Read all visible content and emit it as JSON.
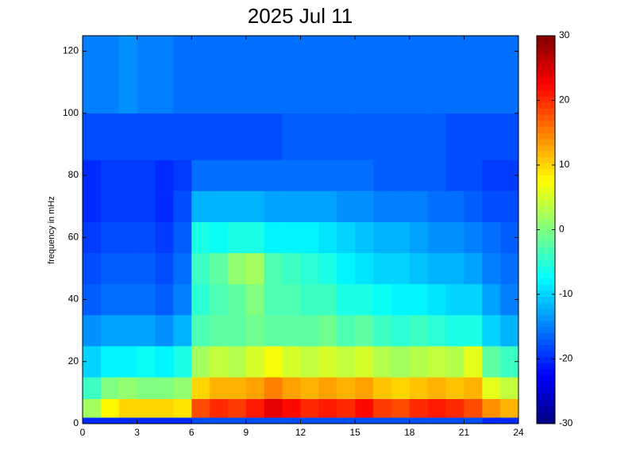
{
  "chart_data": {
    "type": "heatmap",
    "title": "2025 Jul 11",
    "y_label": "frequency in mHz",
    "x_edges": [
      0,
      1,
      2,
      3,
      4,
      5,
      6,
      7,
      8,
      9,
      10,
      11,
      12,
      13,
      14,
      15,
      16,
      17,
      18,
      19,
      20,
      21,
      22,
      23,
      24
    ],
    "y_edges": [
      0,
      2,
      8,
      15,
      25,
      35,
      45,
      55,
      65,
      75,
      85,
      100,
      125
    ],
    "values": [
      [
        -20,
        -20,
        -20,
        -20,
        -20,
        -20,
        -18,
        -18,
        -18,
        -18,
        -18,
        -18,
        -18,
        -18,
        -18,
        -18,
        -18,
        -18,
        -18,
        -18,
        -18,
        -18,
        -20,
        -20
      ],
      [
        2,
        8,
        10,
        10,
        10,
        9,
        18,
        20,
        19,
        21,
        24,
        22,
        20,
        21,
        20,
        22,
        19,
        18,
        20,
        21,
        20,
        18,
        14,
        12
      ],
      [
        -4,
        0,
        1,
        0,
        0,
        1,
        10,
        12,
        12,
        13,
        15,
        13,
        12,
        13,
        12,
        13,
        11,
        10,
        11,
        12,
        11,
        12,
        6,
        4
      ],
      [
        -10,
        -8,
        -8,
        -7,
        -8,
        -6,
        2,
        4,
        3,
        5,
        7,
        5,
        4,
        5,
        4,
        5,
        3,
        2,
        3,
        4,
        3,
        6,
        -2,
        -4
      ],
      [
        -14,
        -13,
        -13,
        -13,
        -14,
        -12,
        -3,
        -2,
        -2,
        -1,
        -2,
        -2,
        -2,
        -1,
        -3,
        -2,
        -4,
        -5,
        -4,
        -5,
        -6,
        -6,
        -10,
        -12
      ],
      [
        -17,
        -16,
        -16,
        -16,
        -17,
        -15,
        -5,
        -3,
        -2,
        0,
        -3,
        -3,
        -4,
        -4,
        -6,
        -6,
        -7,
        -8,
        -8,
        -9,
        -10,
        -10,
        -13,
        -15
      ],
      [
        -18,
        -17,
        -17,
        -17,
        -18,
        -16,
        -4,
        -2,
        1,
        2,
        -3,
        -4,
        -5,
        -6,
        -8,
        -9,
        -10,
        -10,
        -11,
        -12,
        -12,
        -13,
        -15,
        -16
      ],
      [
        -19,
        -18,
        -18,
        -18,
        -19,
        -17,
        -6,
        -7,
        -6,
        -6,
        -8,
        -8,
        -8,
        -9,
        -10,
        -11,
        -12,
        -12,
        -13,
        -14,
        -14,
        -15,
        -16,
        -17
      ],
      [
        -20,
        -19,
        -19,
        -19,
        -20,
        -18,
        -12,
        -12,
        -12,
        -12,
        -13,
        -13,
        -13,
        -13,
        -14,
        -14,
        -15,
        -15,
        -15,
        -16,
        -16,
        -17,
        -18,
        -18
      ],
      [
        -20,
        -19,
        -19,
        -19,
        -20,
        -19,
        -16,
        -16,
        -16,
        -16,
        -16,
        -16,
        -16,
        -16,
        -16,
        -16,
        -17,
        -17,
        -17,
        -17,
        -18,
        -18,
        -19,
        -19
      ],
      [
        -18,
        -18,
        -18,
        -18,
        -18,
        -18,
        -18,
        -18,
        -18,
        -18,
        -18,
        -17,
        -17,
        -17,
        -17,
        -17,
        -17,
        -17,
        -17,
        -17,
        -18,
        -18,
        -18,
        -18
      ],
      [
        -15,
        -15,
        -14,
        -15,
        -15,
        -16,
        -16,
        -16,
        -16,
        -16,
        -16,
        -16,
        -16,
        -16,
        -16,
        -16,
        -16,
        -16,
        -16,
        -16,
        -16,
        -16,
        -16,
        -16
      ]
    ],
    "xlim": [
      0,
      24
    ],
    "xticks": [
      0,
      3,
      6,
      9,
      12,
      15,
      18,
      21,
      24
    ],
    "ylim": [
      0,
      125
    ],
    "yticks": [
      0,
      20,
      40,
      60,
      80,
      100,
      120
    ],
    "clim": [
      -30,
      30
    ],
    "cticks": [
      -30,
      -20,
      -10,
      0,
      10,
      20,
      30
    ],
    "colormap": "jet"
  }
}
